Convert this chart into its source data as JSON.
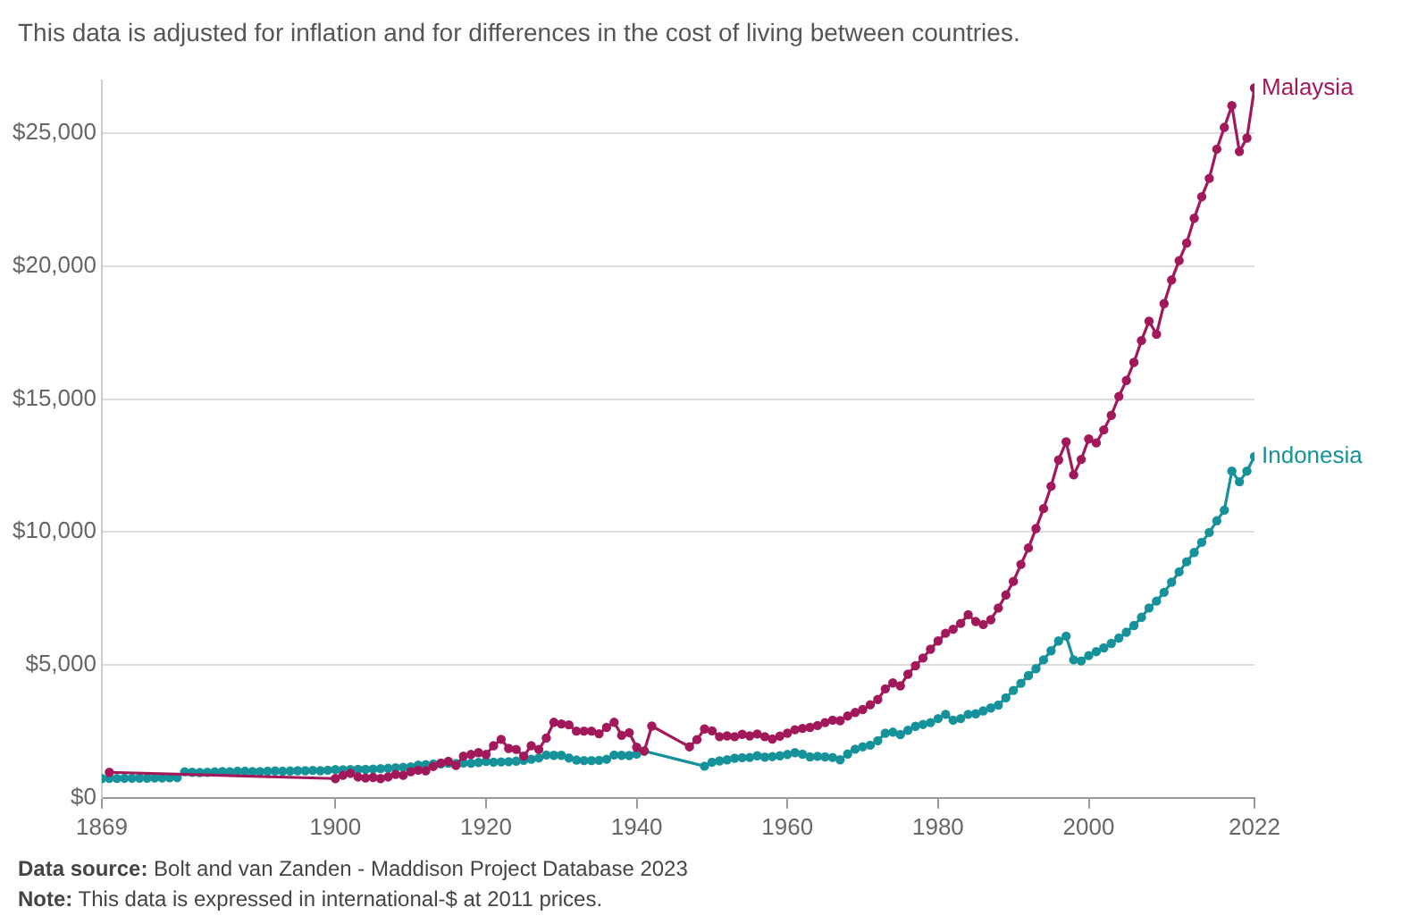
{
  "chart_data": {
    "type": "line",
    "subtitle": "This data is adjusted for inflation and for differences in the cost of living between countries.",
    "annotations": [
      "Data source: Bolt and van Zanden - Maddison Project Database 2023",
      "Note: This data is expressed in international-$ at 2011 prices."
    ],
    "xlim": [
      1869,
      2022
    ],
    "xticks": [
      1869,
      1900,
      1920,
      1940,
      1960,
      1980,
      2000,
      2022
    ],
    "yticks": [
      {
        "value": 0,
        "label": "$0"
      },
      {
        "value": 5000,
        "label": "$5,000"
      },
      {
        "value": 10000,
        "label": "$10,000"
      },
      {
        "value": 15000,
        "label": "$15,000"
      },
      {
        "value": 20000,
        "label": "$20,000"
      },
      {
        "value": 25000,
        "label": "$25,000"
      }
    ],
    "ylim": [
      0,
      27000
    ],
    "grid": "y",
    "legend": "right",
    "marker": "circle",
    "line_style": "solid",
    "series": [
      {
        "name": "Malaysia",
        "color": "#a2195b",
        "x": [
          1870,
          1900,
          1901,
          1902,
          1903,
          1904,
          1905,
          1906,
          1907,
          1908,
          1909,
          1910,
          1911,
          1912,
          1913,
          1914,
          1915,
          1916,
          1917,
          1918,
          1919,
          1920,
          1921,
          1922,
          1923,
          1924,
          1925,
          1926,
          1927,
          1928,
          1929,
          1930,
          1931,
          1932,
          1933,
          1934,
          1935,
          1936,
          1937,
          1938,
          1939,
          1940,
          1941,
          1942,
          1947,
          1948,
          1949,
          1950,
          1951,
          1952,
          1953,
          1954,
          1955,
          1956,
          1957,
          1958,
          1959,
          1960,
          1961,
          1962,
          1963,
          1964,
          1965,
          1966,
          1967,
          1968,
          1969,
          1970,
          1971,
          1972,
          1973,
          1974,
          1975,
          1976,
          1977,
          1978,
          1979,
          1980,
          1981,
          1982,
          1983,
          1984,
          1985,
          1986,
          1987,
          1988,
          1989,
          1990,
          1991,
          1992,
          1993,
          1994,
          1995,
          1996,
          1997,
          1998,
          1999,
          2000,
          2001,
          2002,
          2003,
          2004,
          2005,
          2006,
          2007,
          2008,
          2009,
          2010,
          2011,
          2012,
          2013,
          2014,
          2015,
          2016,
          2017,
          2018,
          2019,
          2020,
          2021,
          2022
        ],
        "values": [
          960,
          725,
          845,
          920,
          785,
          745,
          765,
          725,
          785,
          880,
          845,
          980,
          1040,
          1020,
          1180,
          1310,
          1370,
          1215,
          1570,
          1630,
          1700,
          1630,
          1960,
          2200,
          1860,
          1820,
          1570,
          1960,
          1820,
          2250,
          2840,
          2780,
          2745,
          2510,
          2510,
          2510,
          2410,
          2650,
          2840,
          2350,
          2450,
          1900,
          1760,
          2700,
          1920,
          2190,
          2590,
          2520,
          2300,
          2330,
          2300,
          2390,
          2330,
          2400,
          2300,
          2210,
          2320,
          2430,
          2560,
          2610,
          2650,
          2720,
          2830,
          2920,
          2900,
          3080,
          3210,
          3320,
          3500,
          3700,
          4100,
          4320,
          4210,
          4650,
          4970,
          5260,
          5590,
          5900,
          6190,
          6340,
          6560,
          6890,
          6630,
          6520,
          6700,
          7140,
          7630,
          8140,
          8780,
          9400,
          10130,
          10880,
          11720,
          12710,
          13390,
          12150,
          12730,
          13500,
          13350,
          13840,
          14390,
          15100,
          15700,
          16380,
          17200,
          17930,
          17440,
          18590,
          19480,
          20210,
          20870,
          21800,
          22610,
          23300,
          24400,
          25220,
          26040,
          24310,
          24820,
          26700
        ]
      },
      {
        "name": "Indonesia",
        "color": "#18929a",
        "x": [
          1869,
          1870,
          1871,
          1872,
          1873,
          1874,
          1875,
          1876,
          1877,
          1878,
          1879,
          1880,
          1881,
          1882,
          1883,
          1884,
          1885,
          1886,
          1887,
          1888,
          1889,
          1890,
          1891,
          1892,
          1893,
          1894,
          1895,
          1896,
          1897,
          1898,
          1899,
          1900,
          1901,
          1902,
          1903,
          1904,
          1905,
          1906,
          1907,
          1908,
          1909,
          1910,
          1911,
          1912,
          1913,
          1914,
          1915,
          1916,
          1917,
          1918,
          1919,
          1920,
          1921,
          1922,
          1923,
          1924,
          1925,
          1926,
          1927,
          1928,
          1929,
          1930,
          1931,
          1932,
          1933,
          1934,
          1935,
          1936,
          1937,
          1938,
          1939,
          1940,
          1941,
          1949,
          1950,
          1951,
          1952,
          1953,
          1954,
          1955,
          1956,
          1957,
          1958,
          1959,
          1960,
          1961,
          1962,
          1963,
          1964,
          1965,
          1966,
          1967,
          1968,
          1969,
          1970,
          1971,
          1972,
          1973,
          1974,
          1975,
          1976,
          1977,
          1978,
          1979,
          1980,
          1981,
          1982,
          1983,
          1984,
          1985,
          1986,
          1987,
          1988,
          1989,
          1990,
          1991,
          1992,
          1993,
          1994,
          1995,
          1996,
          1997,
          1998,
          1999,
          2000,
          2001,
          2002,
          2003,
          2004,
          2005,
          2006,
          2007,
          2008,
          2009,
          2010,
          2011,
          2012,
          2013,
          2014,
          2015,
          2016,
          2017,
          2018,
          2019,
          2020,
          2021,
          2022
        ],
        "values": [
          725,
          730,
          730,
          735,
          735,
          740,
          740,
          745,
          750,
          755,
          760,
          980,
          960,
          950,
          960,
          980,
          990,
          980,
          1000,
          1000,
          990,
          990,
          1000,
          1010,
          1000,
          1010,
          1020,
          1020,
          1030,
          1020,
          1040,
          1060,
          1050,
          1060,
          1070,
          1070,
          1080,
          1100,
          1110,
          1130,
          1150,
          1160,
          1230,
          1250,
          1270,
          1280,
          1300,
          1290,
          1310,
          1300,
          1330,
          1370,
          1340,
          1350,
          1360,
          1380,
          1410,
          1450,
          1500,
          1610,
          1600,
          1600,
          1500,
          1420,
          1400,
          1400,
          1410,
          1450,
          1610,
          1600,
          1590,
          1650,
          1760,
          1190,
          1340,
          1390,
          1430,
          1490,
          1510,
          1520,
          1580,
          1530,
          1550,
          1580,
          1630,
          1700,
          1640,
          1540,
          1560,
          1540,
          1520,
          1430,
          1650,
          1830,
          1920,
          1980,
          2150,
          2430,
          2470,
          2380,
          2540,
          2690,
          2760,
          2830,
          2980,
          3140,
          2920,
          2980,
          3140,
          3160,
          3270,
          3380,
          3490,
          3760,
          4040,
          4310,
          4600,
          4860,
          5190,
          5530,
          5900,
          6080,
          5190,
          5150,
          5350,
          5500,
          5640,
          5810,
          6010,
          6230,
          6480,
          6790,
          7140,
          7400,
          7730,
          8110,
          8500,
          8880,
          9230,
          9610,
          9980,
          10420,
          10820,
          12290,
          11890,
          12290,
          12840
        ]
      }
    ]
  }
}
